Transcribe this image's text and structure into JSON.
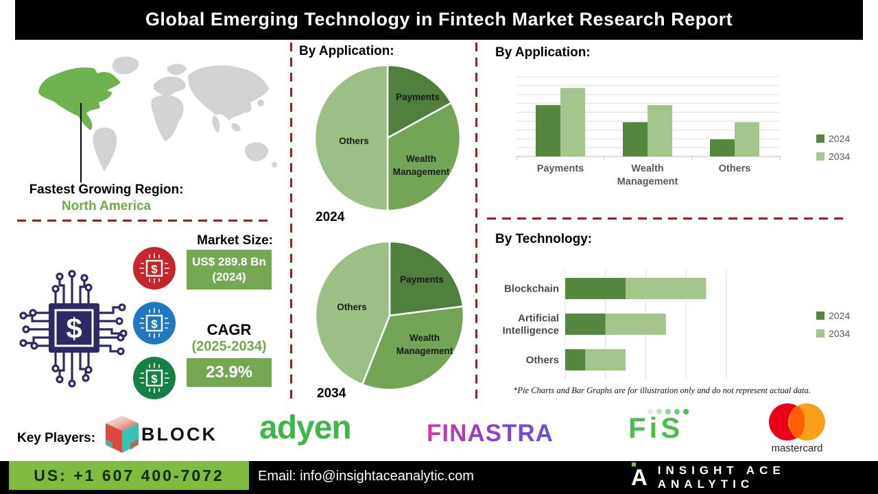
{
  "title": "Global Emerging Technology in Fintech Market Research Report",
  "region": {
    "label": "Fastest Growing Region:",
    "value": "North America"
  },
  "market": {
    "heading": "Market Size:",
    "size_value": "US$ 289.8 Bn",
    "size_year": "(2024)",
    "cagr_label": "CAGR",
    "cagr_period": "(2025-2034)",
    "cagr_value": "23.9%"
  },
  "chart_data": [
    {
      "type": "pie",
      "title": "By Application:",
      "year": "2024",
      "labels": [
        "Payments",
        "Wealth Management",
        "Others"
      ],
      "values": [
        17,
        33,
        50
      ],
      "colors": [
        "#507e3b",
        "#74a455",
        "#9cc084"
      ],
      "note": "values are approximate percent of circle; illustration only"
    },
    {
      "type": "pie",
      "year": "2034",
      "labels": [
        "Payments",
        "Wealth Management",
        "Others"
      ],
      "values": [
        23,
        33,
        44
      ],
      "colors": [
        "#507e3b",
        "#74a455",
        "#9cc084"
      ],
      "note": "values are approximate percent of circle; illustration only"
    },
    {
      "type": "bar",
      "title": "By Application:",
      "categories": [
        "Payments",
        "Wealth Management",
        "Others"
      ],
      "series": [
        {
          "name": "2024",
          "color": "#568741",
          "values": [
            6,
            4,
            2
          ]
        },
        {
          "name": "2034",
          "color": "#a3c48b",
          "values": [
            8,
            6,
            4
          ]
        }
      ],
      "ylim": [
        0,
        9.3
      ],
      "grid": true,
      "legend_position": "right",
      "note": "relative heights estimated from gridlines; illustration only"
    },
    {
      "type": "bar-horizontal-stacked",
      "title": "By Technology:",
      "categories": [
        "Blockchain",
        "Artificial Intelligence",
        "Others"
      ],
      "series": [
        {
          "name": "2024",
          "color": "#568741",
          "values": [
            1.5,
            1.0,
            0.5
          ]
        },
        {
          "name": "2034",
          "color": "#a3c48b",
          "values": [
            2.0,
            1.5,
            1.0
          ]
        }
      ],
      "xlim": [
        0,
        4
      ],
      "grid": true,
      "legend_position": "right",
      "note": "relative widths estimated from gridlines; illustration only"
    }
  ],
  "disclaimer": "*Pie Charts and Bar Graphs are for illustration only and do not represent actual data.",
  "key_players": {
    "label": "Key Players:",
    "items": [
      {
        "name": "Block",
        "display": "BLOCK"
      },
      {
        "name": "Adyen",
        "display": "adyen"
      },
      {
        "name": "Finastra",
        "display": "FINASTRA"
      },
      {
        "name": "FIS",
        "display": "FiS"
      },
      {
        "name": "Mastercard",
        "display": "mastercard"
      }
    ]
  },
  "footer": {
    "phone": "US: +1 607 400-7072",
    "email": "Email: info@insightaceanalytic.com",
    "brand": "INSIGHT ACE ANALYTIC"
  },
  "colors": {
    "accent_green": "#70a84f",
    "box_green": "#76a851",
    "footer_green": "#80ba3e",
    "dashed_red": "#9e1b1b",
    "map_highlight": "#6db24d",
    "map_gray": "#d2d2d2",
    "chip_navy": "#2c2a66",
    "badge_red": "#c5262c",
    "badge_blue": "#1f78c1",
    "badge_green": "#157f46",
    "bar_2024": "#568741",
    "bar_2034": "#a3c48b"
  }
}
